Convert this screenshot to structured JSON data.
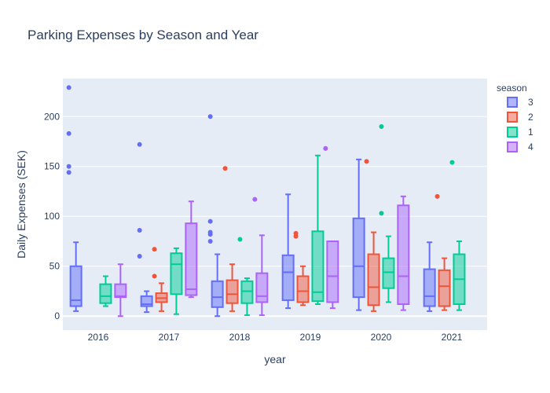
{
  "chart_data": {
    "type": "box",
    "title": "Parking Expenses by Season and Year",
    "xlabel": "year",
    "ylabel": "Daily Expenses (SEK)",
    "categories": [
      "2016",
      "2017",
      "2018",
      "2019",
      "2020",
      "2021"
    ],
    "y_ticks": [
      0,
      50,
      100,
      150,
      200
    ],
    "ylim": [
      -14,
      238
    ],
    "grid": true,
    "legend": {
      "title": "season",
      "placement": "right"
    },
    "series": [
      {
        "name": "3",
        "color": "#636efa",
        "boxes": {
          "2016": {
            "lowerfence": 5,
            "q1": 10,
            "median": 16,
            "q3": 50,
            "upperfence": 74,
            "outliers": [
              144,
              150,
              183,
              229
            ]
          },
          "2017": {
            "lowerfence": 4,
            "q1": 10,
            "median": 12,
            "q3": 20,
            "upperfence": 25,
            "outliers": [
              60,
              86,
              172
            ]
          },
          "2018": {
            "lowerfence": 0,
            "q1": 9,
            "median": 19,
            "q3": 35,
            "upperfence": 62,
            "outliers": [
              75,
              82,
              84,
              95,
              200
            ]
          },
          "2019": {
            "lowerfence": 8,
            "q1": 16,
            "median": 44,
            "q3": 61,
            "upperfence": 122,
            "outliers": []
          },
          "2020": {
            "lowerfence": 6,
            "q1": 19,
            "median": 50,
            "q3": 98,
            "upperfence": 157,
            "outliers": []
          },
          "2021": {
            "lowerfence": 5,
            "q1": 10,
            "median": 20,
            "q3": 47,
            "upperfence": 74,
            "outliers": []
          }
        }
      },
      {
        "name": "2",
        "color": "#ef553b",
        "boxes": {
          "2017": {
            "lowerfence": 5,
            "q1": 14,
            "median": 18,
            "q3": 23,
            "upperfence": 33,
            "outliers": [
              40,
              67
            ]
          },
          "2018": {
            "lowerfence": 5,
            "q1": 13,
            "median": 22,
            "q3": 36,
            "upperfence": 52,
            "outliers": [
              148
            ]
          },
          "2019": {
            "lowerfence": 11,
            "q1": 14,
            "median": 25,
            "q3": 40,
            "upperfence": 50,
            "outliers": [
              80,
              83
            ]
          },
          "2020": {
            "lowerfence": 5,
            "q1": 11,
            "median": 29,
            "q3": 62,
            "upperfence": 84,
            "outliers": [
              155
            ]
          },
          "2021": {
            "lowerfence": 6,
            "q1": 10,
            "median": 30,
            "q3": 46,
            "upperfence": 58,
            "outliers": [
              120
            ]
          }
        }
      },
      {
        "name": "1",
        "color": "#00cc96",
        "boxes": {
          "2016": {
            "lowerfence": 10,
            "q1": 13,
            "median": 20,
            "q3": 32,
            "upperfence": 40,
            "outliers": []
          },
          "2017": {
            "lowerfence": 2,
            "q1": 22,
            "median": 52,
            "q3": 63,
            "upperfence": 68,
            "outliers": []
          },
          "2018": {
            "lowerfence": 1,
            "q1": 13,
            "median": 25,
            "q3": 35,
            "upperfence": 38,
            "outliers": [
              77
            ]
          },
          "2019": {
            "lowerfence": 12,
            "q1": 15,
            "median": 24,
            "q3": 85,
            "upperfence": 161,
            "outliers": []
          },
          "2020": {
            "lowerfence": 14,
            "q1": 28,
            "median": 44,
            "q3": 58,
            "upperfence": 80,
            "outliers": [
              103,
              190
            ]
          },
          "2021": {
            "lowerfence": 6,
            "q1": 12,
            "median": 37,
            "q3": 62,
            "upperfence": 75,
            "outliers": [
              154
            ]
          }
        }
      },
      {
        "name": "4",
        "color": "#ab63fa",
        "boxes": {
          "2016": {
            "lowerfence": 0,
            "q1": 19,
            "median": 20,
            "q3": 32,
            "upperfence": 52,
            "outliers": []
          },
          "2017": {
            "lowerfence": 19,
            "q1": 21,
            "median": 27,
            "q3": 93,
            "upperfence": 115,
            "outliers": []
          },
          "2018": {
            "lowerfence": 1,
            "q1": 14,
            "median": 20,
            "q3": 43,
            "upperfence": 81,
            "outliers": [
              117
            ]
          },
          "2019": {
            "lowerfence": 8,
            "q1": 14,
            "median": 40,
            "q3": 75,
            "upperfence": 75,
            "outliers": [
              168
            ]
          },
          "2020": {
            "lowerfence": 6,
            "q1": 12,
            "median": 40,
            "q3": 111,
            "upperfence": 120,
            "outliers": []
          }
        }
      }
    ]
  }
}
